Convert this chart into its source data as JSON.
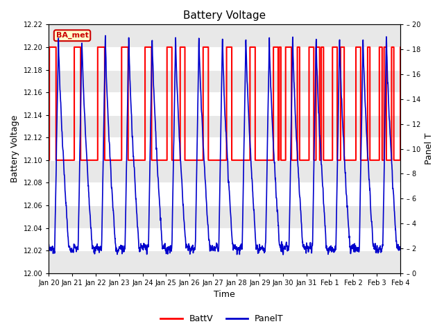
{
  "title": "Battery Voltage",
  "xlabel": "Time",
  "ylabel_left": "Battery Voltage",
  "ylabel_right": "Panel T",
  "ylim_left": [
    12.0,
    12.22
  ],
  "ylim_right": [
    0,
    20
  ],
  "yticks_left": [
    12.0,
    12.02,
    12.04,
    12.06,
    12.08,
    12.1,
    12.12,
    12.14,
    12.16,
    12.18,
    12.2,
    12.22
  ],
  "yticks_right": [
    0,
    2,
    4,
    6,
    8,
    10,
    12,
    14,
    16,
    18,
    20
  ],
  "xtick_labels": [
    "Jan 20",
    "Jan 21",
    "Jan 22",
    "Jan 23",
    "Jan 24",
    "Jan 25",
    "Jan 26",
    "Jan 27",
    "Jan 28",
    "Jan 29",
    "Jan 30",
    "Jan 31",
    "Feb 1",
    "Feb 2",
    "Feb 3",
    "Feb 4"
  ],
  "fig_bg": "#ffffff",
  "plot_bg": "#ffffff",
  "band_color": "#e8e8e8",
  "batt_color": "#ff0000",
  "panel_color": "#0000cc",
  "legend_batt": "BattV",
  "legend_panel": "PanelT",
  "ba_met_label": "BA_met",
  "ba_met_bg": "#ffffcc",
  "ba_met_border": "#cc0000",
  "batt_linewidth": 1.5,
  "panel_linewidth": 1.2
}
